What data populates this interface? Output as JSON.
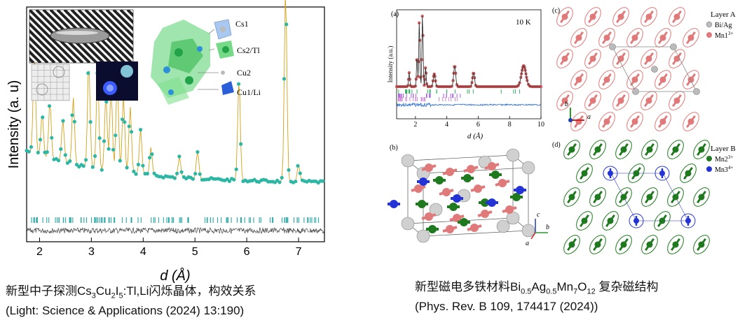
{
  "left_figure": {
    "ylabel": "Intensity (a. u)",
    "xlabel": "d (Å)",
    "xticks": [
      "2",
      "3",
      "4",
      "5",
      "6",
      "7"
    ],
    "inset_labels": [
      "Cs1",
      "Cs2/Tl",
      "Cu2",
      "Cu1/Li"
    ],
    "caption_prefix": "新型中子探测Cs",
    "caption_s1": "3",
    "caption_mid1": "Cu",
    "caption_s2": "2",
    "caption_mid2": "I",
    "caption_s3": "5",
    "caption_suffix": ":Tl,Li闪烁晶体，构效关系",
    "caption_line2": "(Light: Science & Applications (2024) 13:190)",
    "colors": {
      "obs": "#2bb7a4",
      "calc": "#d4a017",
      "diff": "#444444",
      "ticks": "#2aa9a6"
    }
  },
  "panel_a": {
    "label": "(a)",
    "temp": "10 K",
    "ylabel": "Intensity (a.u.)",
    "xlabel": "d (Å)",
    "xticks": [
      "2",
      "4",
      "6",
      "8",
      "10"
    ],
    "colors": {
      "obs": "#d9666a",
      "calc": "#222222",
      "diff": "#2a6fd6"
    }
  },
  "panel_b": {
    "label": "(b)",
    "axis_c": "c",
    "axis_a": "a",
    "axis_b": "b"
  },
  "panel_c": {
    "label": "(c)",
    "legend_title": "Layer A",
    "legend_item1": "Bi/Ag",
    "legend_item2": "Mn1",
    "legend_item2_sup": "3+",
    "axis_b": "b",
    "axis_a": "a"
  },
  "panel_d": {
    "label": "(d)",
    "legend_title": "Layer B",
    "legend_item1": "Mn2",
    "legend_item1_sup": "3+",
    "legend_item2": "Mn3",
    "legend_item2_sup": "4+"
  },
  "right_caption": {
    "prefix": "新型磁电多铁材料Bi",
    "s1": "0.5",
    "m1": "Ag",
    "s2": "0.5",
    "m2": "Mn",
    "s3": "7",
    "m3": "O",
    "s4": "12",
    "suffix": " 复杂磁结构",
    "line2": "(Phys. Rev. B 109, 174417 (2024))"
  }
}
